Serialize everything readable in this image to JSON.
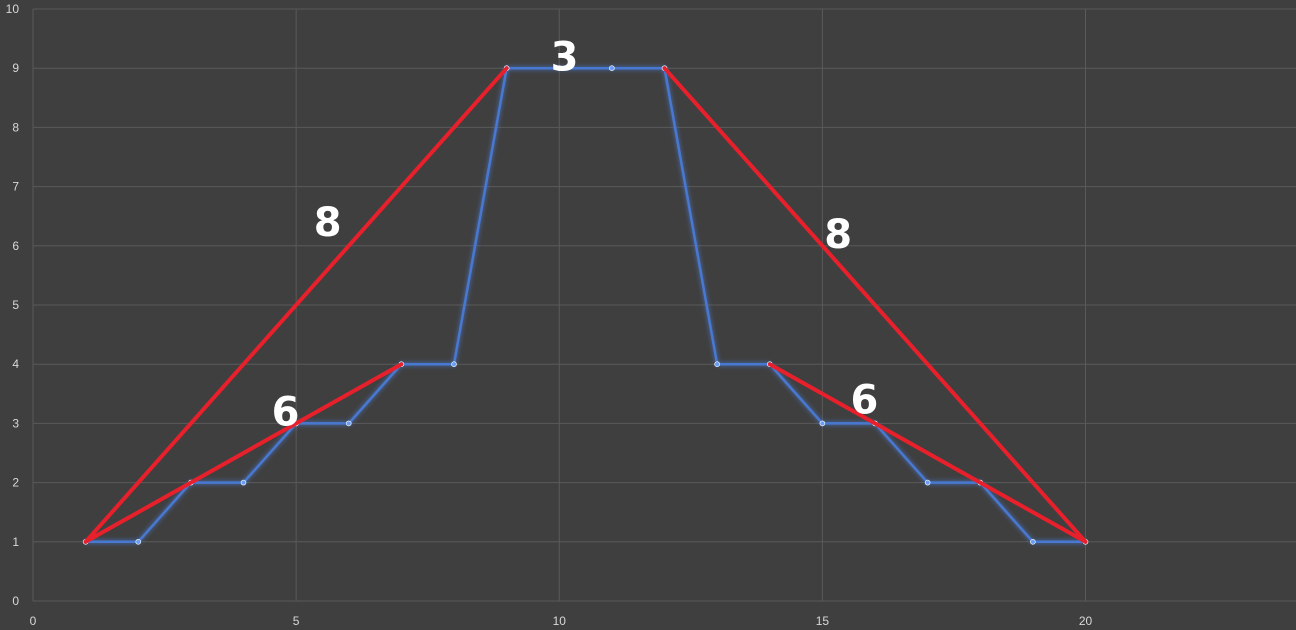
{
  "chart_data": {
    "type": "line",
    "title": "",
    "xlabel": "",
    "ylabel": "",
    "xlim": [
      0,
      24
    ],
    "ylim": [
      0,
      10
    ],
    "x_ticks": [
      0,
      5,
      10,
      15,
      20
    ],
    "y_ticks": [
      0,
      1,
      2,
      3,
      4,
      5,
      6,
      7,
      8,
      9,
      10
    ],
    "grid": true,
    "legend": "none",
    "colors": {
      "background": "#3f3f3f",
      "grid": "#5a5a5a",
      "series": "#4a78d0",
      "series_glow": "#6a9ff5",
      "overlay": "#e8202b",
      "annotation": "#ffffff"
    },
    "series": [
      {
        "x": [
          1,
          2,
          3,
          4,
          5,
          6,
          7,
          8,
          9,
          10,
          11,
          12,
          13,
          14,
          15,
          16,
          17,
          18,
          19,
          20
        ],
        "y": [
          1,
          1,
          2,
          2,
          3,
          3,
          4,
          4,
          9,
          9,
          9,
          9,
          4,
          4,
          3,
          3,
          2,
          2,
          1,
          1
        ]
      }
    ],
    "overlay_lines": [
      {
        "x": [
          1,
          9
        ],
        "y": [
          1,
          9
        ]
      },
      {
        "x": [
          1,
          7
        ],
        "y": [
          1,
          4
        ]
      },
      {
        "x": [
          12,
          20
        ],
        "y": [
          9,
          1
        ]
      },
      {
        "x": [
          14,
          20
        ],
        "y": [
          4,
          1
        ]
      }
    ],
    "annotations": [
      {
        "text": "8",
        "x": 5.6,
        "y": 6.4
      },
      {
        "text": "6",
        "x": 4.8,
        "y": 3.2
      },
      {
        "text": "3",
        "x": 10.1,
        "y": 9.2
      },
      {
        "text": "8",
        "x": 15.3,
        "y": 6.2
      },
      {
        "text": "6",
        "x": 15.8,
        "y": 3.4
      }
    ]
  }
}
